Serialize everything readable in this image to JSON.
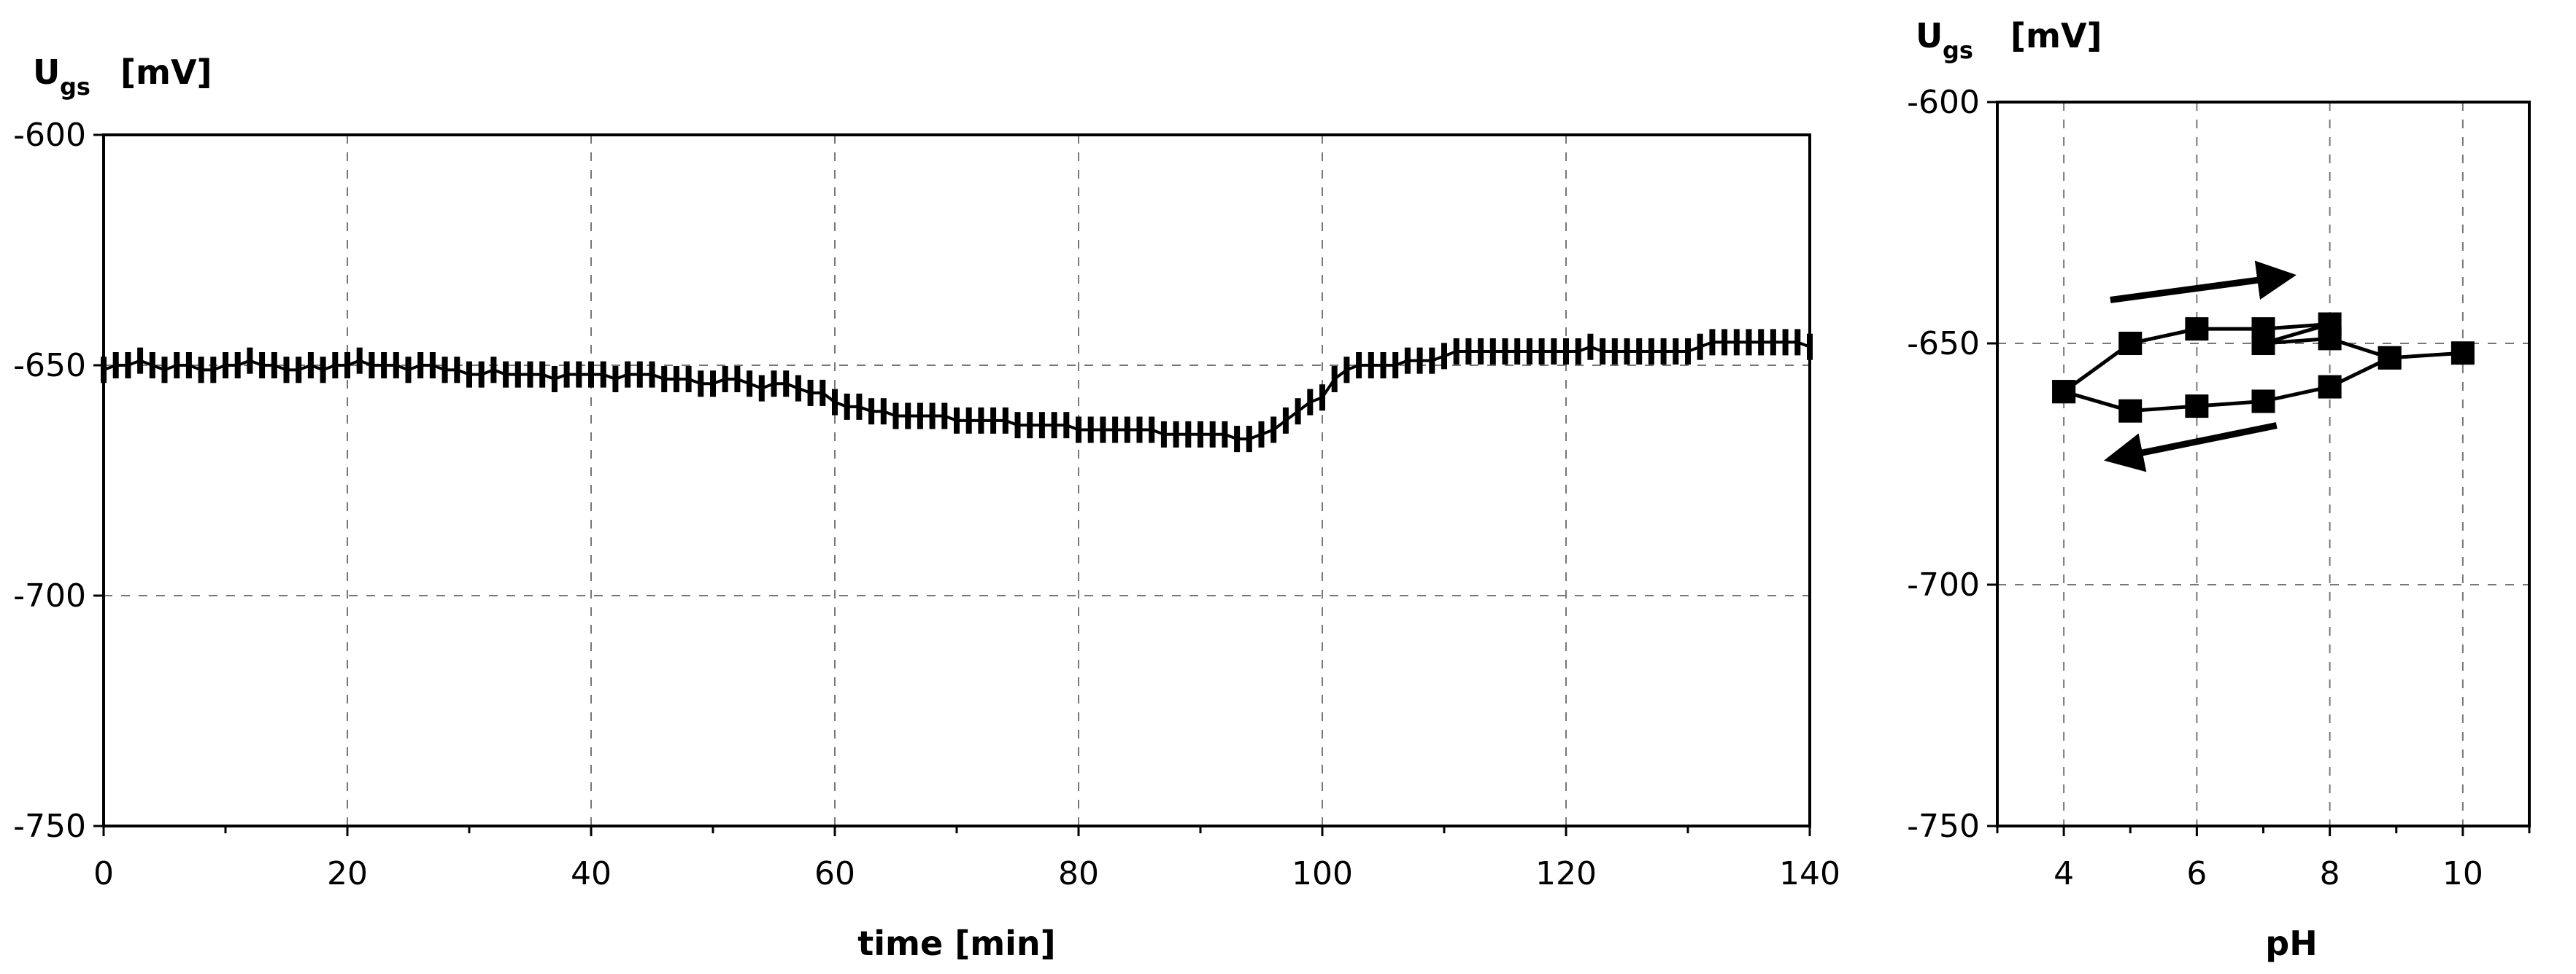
{
  "chart_data": [
    {
      "type": "line",
      "ylabel_main": "U",
      "ylabel_sub": "gs",
      "ylabel_unit": "[mV]",
      "xlabel": "time [min]",
      "xlim": [
        0,
        140
      ],
      "ylim": [
        -750,
        -600
      ],
      "xticks": [
        "0",
        "20",
        "40",
        "60",
        "80",
        "100",
        "120",
        "140"
      ],
      "yticks": [
        "-600",
        "-650",
        "-700",
        "-750"
      ],
      "grid": true,
      "legend": "none",
      "marker": "thin-vertical-bar",
      "series": [
        {
          "x": [
            0,
            1,
            2,
            3,
            4,
            5,
            6,
            7,
            8,
            9,
            10,
            11,
            12,
            13,
            14,
            15,
            16,
            17,
            18,
            19,
            20,
            21,
            22,
            23,
            24,
            25,
            26,
            27,
            28,
            29,
            30,
            31,
            32,
            33,
            34,
            35,
            36,
            37,
            38,
            39,
            40,
            41,
            42,
            43,
            44,
            45,
            46,
            47,
            48,
            49,
            50,
            51,
            52,
            53,
            54,
            55,
            56,
            57,
            58,
            59,
            60,
            61,
            62,
            63,
            64,
            65,
            66,
            67,
            68,
            69,
            70,
            71,
            72,
            73,
            74,
            75,
            76,
            77,
            78,
            79,
            80,
            81,
            82,
            83,
            84,
            85,
            86,
            87,
            88,
            89,
            90,
            91,
            92,
            93,
            94,
            95,
            96,
            97,
            98,
            99,
            100,
            101,
            102,
            103,
            104,
            105,
            106,
            107,
            108,
            109,
            110,
            111,
            112,
            113,
            114,
            115,
            116,
            117,
            118,
            119,
            120,
            121,
            122,
            123,
            124,
            125,
            126,
            127,
            128,
            129,
            130,
            131,
            132,
            133,
            134,
            135,
            136,
            137,
            138,
            139,
            140
          ],
          "y": [
            -651,
            -650,
            -650,
            -649,
            -650,
            -651,
            -650,
            -650,
            -651,
            -651,
            -650,
            -650,
            -649,
            -650,
            -650,
            -651,
            -651,
            -650,
            -651,
            -650,
            -650,
            -649,
            -650,
            -650,
            -650,
            -651,
            -650,
            -650,
            -651,
            -651,
            -652,
            -652,
            -651,
            -652,
            -652,
            -652,
            -652,
            -653,
            -652,
            -652,
            -652,
            -652,
            -653,
            -652,
            -652,
            -652,
            -653,
            -653,
            -653,
            -654,
            -654,
            -653,
            -653,
            -654,
            -655,
            -654,
            -654,
            -655,
            -656,
            -656,
            -658,
            -659,
            -659,
            -660,
            -660,
            -661,
            -661,
            -661,
            -661,
            -661,
            -662,
            -662,
            -662,
            -662,
            -662,
            -663,
            -663,
            -663,
            -663,
            -663,
            -664,
            -664,
            -664,
            -664,
            -664,
            -664,
            -664,
            -665,
            -665,
            -665,
            -665,
            -665,
            -665,
            -666,
            -666,
            -665,
            -664,
            -662,
            -660,
            -658,
            -657,
            -653,
            -651,
            -650,
            -650,
            -650,
            -650,
            -649,
            -649,
            -649,
            -648,
            -647,
            -647,
            -647,
            -647,
            -647,
            -647,
            -647,
            -647,
            -647,
            -647,
            -647,
            -646,
            -647,
            -647,
            -647,
            -647,
            -647,
            -647,
            -647,
            -647,
            -646,
            -645,
            -645,
            -645,
            -645,
            -645,
            -645,
            -645,
            -645,
            -646
          ]
        }
      ]
    },
    {
      "type": "line",
      "ylabel_main": "U",
      "ylabel_sub": "gs",
      "ylabel_unit": "[mV]",
      "xlabel": "pH",
      "xlim": [
        3,
        11
      ],
      "ylim": [
        -750,
        -600
      ],
      "xticks": [
        "4",
        "6",
        "8",
        "10"
      ],
      "yticks": [
        "-600",
        "-650",
        "-700",
        "-750"
      ],
      "grid": true,
      "legend": "none",
      "marker": "filled-square",
      "series": [
        {
          "x": [
            4,
            5,
            6,
            7,
            8,
            7,
            8,
            8.9,
            10,
            8.9,
            8,
            7,
            6,
            5,
            4
          ],
          "y": [
            -660,
            -650,
            -647,
            -647,
            -646,
            -650,
            -649,
            -653,
            -652,
            -653,
            -659,
            -662,
            -663,
            -664,
            -660
          ]
        }
      ],
      "annotations": [
        {
          "type": "arrow",
          "direction": "right",
          "from": [
            4.7,
            -641
          ],
          "to": [
            7.4,
            -636
          ]
        },
        {
          "type": "arrow",
          "direction": "left",
          "from": [
            7.2,
            -667
          ],
          "to": [
            4.7,
            -674
          ]
        }
      ]
    }
  ]
}
